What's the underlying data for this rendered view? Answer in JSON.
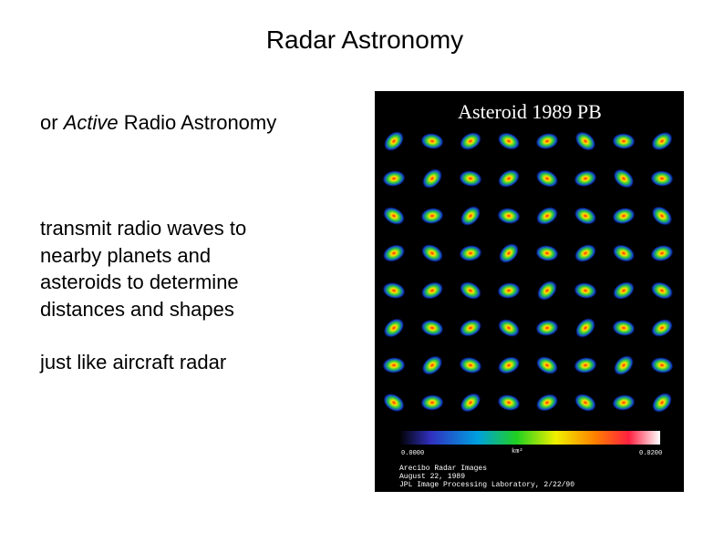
{
  "slide": {
    "title": "Radar Astronomy",
    "subtitle": [
      "or ",
      "Active",
      " Radio Astronomy"
    ],
    "paragraphs": [
      [
        "transmit radio waves to",
        "nearby planets and",
        "asteroids to determine",
        "distances and shapes"
      ],
      [
        "just like aircraft radar"
      ]
    ],
    "image": {
      "title": "Asteroid 1989 PB",
      "scale_min": "0.0000",
      "scale_unit": "km²",
      "scale_max": "0.0200",
      "caption": [
        "Arecibo Radar Images",
        "August 22, 1989",
        "JPL Image Processing Laboratory, 2/22/90"
      ]
    }
  }
}
